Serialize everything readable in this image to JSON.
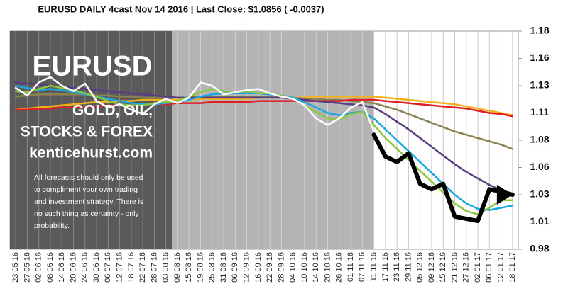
{
  "chart_data": {
    "type": "line",
    "title": "EURUSD  DAILY  4cast  Nov 14 2016 | Last Close: $1.0856 ( -0.0037)",
    "panel": {
      "heading": "EURUSD",
      "lines": [
        "GOLD, OIL,",
        "STOCKS & FOREX",
        "kenticehurst.com"
      ],
      "disclaimer": [
        "All forecasts should only be used",
        "to compliment your own trading",
        "and investment strategy. There is",
        "no such thing as certainty - only",
        "probability."
      ]
    },
    "categories": [
      "23 05 16",
      "27 05 16",
      "02 06 16",
      "08 06 16",
      "14 06 16",
      "20 06 16",
      "24 06 16",
      "30 06 16",
      "06 07 16",
      "12 07 16",
      "18 07 16",
      "22 07 16",
      "28 07 16",
      "03 08 16",
      "09 08 16",
      "15 08 16",
      "19 08 16",
      "25 08 16",
      "31 08 16",
      "06 09 16",
      "12 09 16",
      "16 09 16",
      "22 09 16",
      "28 09 16",
      "04 10 16",
      "10 10 16",
      "14 10 16",
      "20 10 16",
      "26 10 16",
      "01 11 16",
      "07 11 16",
      "11 11 16",
      "17 11 16",
      "23 11 16",
      "29 11 16",
      "05 12 16",
      "09 12 16",
      "15 12 16",
      "21 12 16",
      "27 12 16",
      "02 01 17",
      "06 01 17",
      "12 01 17",
      "18 01 17"
    ],
    "ylim": [
      0.98,
      1.18
    ],
    "yticks": [
      0.98,
      {
        "value": 1.005,
        "label": "1.01"
      },
      1.03,
      {
        "value": 1.055,
        "label": "1.06"
      },
      1.08,
      {
        "value": 1.105,
        "label": "1.11"
      },
      1.13,
      {
        "value": 1.155,
        "label": "1.16"
      },
      1.18
    ],
    "series": [
      {
        "color": "#f5b21a",
        "values": [
          1.108,
          1.109,
          1.11,
          1.111,
          1.112,
          1.113,
          1.114,
          1.115,
          1.115,
          1.116,
          1.116,
          1.117,
          1.117,
          1.117,
          1.117,
          1.117,
          1.118,
          1.118,
          1.118,
          1.118,
          1.118,
          1.119,
          1.119,
          1.119,
          1.119,
          1.119,
          1.12,
          1.12,
          1.12,
          1.12,
          1.12,
          1.12,
          1.119,
          1.118,
          1.117,
          1.116,
          1.115,
          1.114,
          1.113,
          1.111,
          1.109,
          1.107,
          1.105,
          1.103
        ]
      },
      {
        "color": "#8c8250",
        "values": [
          1.12,
          1.121,
          1.122,
          1.122,
          1.122,
          1.122,
          1.122,
          1.121,
          1.121,
          1.12,
          1.12,
          1.119,
          1.119,
          1.119,
          1.119,
          1.119,
          1.12,
          1.12,
          1.12,
          1.12,
          1.12,
          1.12,
          1.12,
          1.119,
          1.119,
          1.118,
          1.118,
          1.117,
          1.117,
          1.116,
          1.115,
          1.114,
          1.111,
          1.108,
          1.104,
          1.1,
          1.096,
          1.092,
          1.088,
          1.085,
          1.082,
          1.079,
          1.076,
          1.072
        ]
      },
      {
        "color": "#dd1f26",
        "values": [
          1.108,
          1.108,
          1.109,
          1.109,
          1.11,
          1.11,
          1.111,
          1.111,
          1.112,
          1.112,
          1.112,
          1.113,
          1.113,
          1.113,
          1.114,
          1.114,
          1.114,
          1.115,
          1.115,
          1.115,
          1.115,
          1.116,
          1.116,
          1.116,
          1.116,
          1.116,
          1.116,
          1.116,
          1.116,
          1.117,
          1.117,
          1.117,
          1.116,
          1.115,
          1.114,
          1.113,
          1.112,
          1.111,
          1.11,
          1.109,
          1.107,
          1.105,
          1.104,
          1.102
        ]
      },
      {
        "color": "#5a3c82",
        "values": [
          1.133,
          1.132,
          1.131,
          1.13,
          1.129,
          1.128,
          1.127,
          1.126,
          1.125,
          1.124,
          1.123,
          1.122,
          1.121,
          1.12,
          1.119,
          1.119,
          1.119,
          1.119,
          1.119,
          1.119,
          1.119,
          1.119,
          1.119,
          1.119,
          1.118,
          1.117,
          1.116,
          1.115,
          1.114,
          1.113,
          1.112,
          1.11,
          1.104,
          1.097,
          1.09,
          1.082,
          1.074,
          1.066,
          1.058,
          1.051,
          1.045,
          1.039,
          1.034,
          1.03
        ]
      },
      {
        "color": "#1aa6de",
        "values": [
          1.13,
          1.128,
          1.126,
          1.127,
          1.126,
          1.124,
          1.122,
          1.12,
          1.118,
          1.116,
          1.114,
          1.113,
          1.113,
          1.114,
          1.115,
          1.117,
          1.12,
          1.122,
          1.123,
          1.123,
          1.123,
          1.123,
          1.122,
          1.121,
          1.119,
          1.115,
          1.11,
          1.105,
          1.103,
          1.105,
          1.106,
          1.1,
          1.09,
          1.08,
          1.07,
          1.06,
          1.05,
          1.04,
          1.03,
          1.022,
          1.017,
          1.016,
          1.018,
          1.02
        ]
      },
      {
        "color": "#8cc63f",
        "values": [
          1.125,
          1.124,
          1.127,
          1.13,
          1.128,
          1.126,
          1.123,
          1.12,
          1.116,
          1.113,
          1.112,
          1.112,
          1.114,
          1.115,
          1.116,
          1.12,
          1.124,
          1.127,
          1.125,
          1.124,
          1.125,
          1.123,
          1.123,
          1.121,
          1.118,
          1.112,
          1.106,
          1.1,
          1.099,
          1.104,
          1.106,
          1.094,
          1.082,
          1.072,
          1.062,
          1.052,
          1.042,
          1.032,
          1.022,
          1.015,
          1.012,
          1.018,
          1.025,
          1.025
        ]
      },
      {
        "color": "#ffffff",
        "values": [
          1.128,
          1.121,
          1.133,
          1.138,
          1.13,
          1.125,
          1.132,
          1.116,
          1.11,
          1.113,
          1.108,
          1.104,
          1.113,
          1.118,
          1.114,
          1.119,
          1.133,
          1.13,
          1.122,
          1.124,
          1.126,
          1.127,
          1.123,
          1.12,
          1.118,
          1.112,
          1.1,
          1.094,
          1.1,
          1.11,
          1.115,
          1.088,
          null,
          null,
          null,
          null,
          null,
          null,
          null,
          null,
          null,
          null,
          null,
          null
        ]
      },
      {
        "color": "#000000",
        "values": [
          null,
          null,
          null,
          null,
          null,
          null,
          null,
          null,
          null,
          null,
          null,
          null,
          null,
          null,
          null,
          null,
          null,
          null,
          null,
          null,
          null,
          null,
          null,
          null,
          null,
          null,
          null,
          null,
          null,
          null,
          null,
          1.085,
          1.065,
          1.06,
          1.068,
          1.04,
          1.035,
          1.04,
          1.01,
          1.008,
          1.006,
          1.035,
          1.033,
          1.03
        ]
      }
    ]
  }
}
